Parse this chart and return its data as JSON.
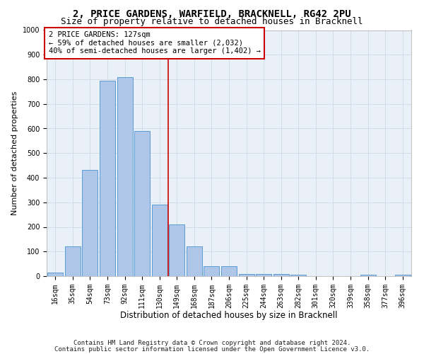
{
  "title1": "2, PRICE GARDENS, WARFIELD, BRACKNELL, RG42 2PU",
  "title2": "Size of property relative to detached houses in Bracknell",
  "xlabel": "Distribution of detached houses by size in Bracknell",
  "ylabel": "Number of detached properties",
  "bar_labels": [
    "16sqm",
    "35sqm",
    "54sqm",
    "73sqm",
    "92sqm",
    "111sqm",
    "130sqm",
    "149sqm",
    "168sqm",
    "187sqm",
    "206sqm",
    "225sqm",
    "244sqm",
    "263sqm",
    "282sqm",
    "301sqm",
    "320sqm",
    "339sqm",
    "358sqm",
    "377sqm",
    "396sqm"
  ],
  "bar_heights": [
    15,
    120,
    433,
    793,
    808,
    590,
    290,
    210,
    120,
    40,
    40,
    10,
    8,
    8,
    5,
    0,
    0,
    0,
    5,
    0,
    5
  ],
  "bar_color": "#aec6e8",
  "bar_edge_color": "#5b9bd5",
  "grid_color": "#d0dce8",
  "bg_color": "#eaf0f8",
  "vline_x": 6.5,
  "vline_color": "#cc0000",
  "annotation_line1": "2 PRICE GARDENS: 127sqm",
  "annotation_line2": "← 59% of detached houses are smaller (2,032)",
  "annotation_line3": "40% of semi-detached houses are larger (1,402) →",
  "annotation_box_color": "#ffffff",
  "annotation_box_edge": "#cc0000",
  "ylim": [
    0,
    1000
  ],
  "yticks": [
    0,
    100,
    200,
    300,
    400,
    500,
    600,
    700,
    800,
    900,
    1000
  ],
  "footnote1": "Contains HM Land Registry data © Crown copyright and database right 2024.",
  "footnote2": "Contains public sector information licensed under the Open Government Licence v3.0.",
  "title1_fontsize": 10,
  "title2_fontsize": 9,
  "xlabel_fontsize": 8.5,
  "ylabel_fontsize": 8,
  "tick_fontsize": 7,
  "annotation_fontsize": 7.5,
  "footnote_fontsize": 6.5
}
